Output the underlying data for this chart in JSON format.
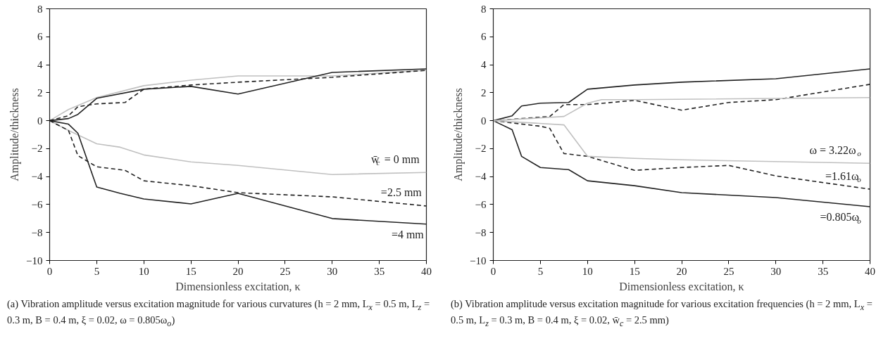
{
  "chart_data": [
    {
      "type": "line",
      "xlabel": "Dimensionless excitation, κ",
      "ylabel": "Amplitude/thickness",
      "xlim": [
        0,
        40
      ],
      "xticks": [
        0,
        5,
        10,
        15,
        20,
        25,
        30,
        35,
        40
      ],
      "ylim": [
        -10,
        8
      ],
      "yticks": [
        -10,
        -8,
        -6,
        -4,
        -2,
        0,
        2,
        4,
        6,
        8
      ],
      "grid": false,
      "legend": false,
      "marker": "none",
      "series": [
        {
          "color": "#c0c0c0",
          "line_style": "solid",
          "x": [
            0,
            1,
            2,
            5,
            10,
            15,
            20,
            30,
            40
          ],
          "values": [
            0,
            0.4,
            0.8,
            1.65,
            2.5,
            2.9,
            3.2,
            3.2,
            3.6
          ]
        },
        {
          "name": "w̄$_{c}$ = 0 mm",
          "color": "#c0c0c0",
          "line_style": "solid",
          "x": [
            0,
            2,
            5,
            7.5,
            10,
            15,
            20,
            30,
            40
          ],
          "values": [
            0,
            -0.7,
            -1.65,
            -1.9,
            -2.45,
            -2.95,
            -3.2,
            -3.85,
            -3.7
          ]
        },
        {
          "color": "#222222",
          "line_style": "dashed",
          "x": [
            0,
            2,
            3,
            5,
            8,
            10,
            15,
            20,
            30,
            40
          ],
          "values": [
            0,
            0.35,
            1.0,
            1.2,
            1.3,
            2.25,
            2.55,
            2.75,
            3.1,
            3.6
          ]
        },
        {
          "name": "=2.5 mm",
          "color": "#222222",
          "line_style": "dashed",
          "x": [
            0,
            2,
            3,
            5,
            8,
            10,
            15,
            20,
            30,
            40
          ],
          "values": [
            0,
            -0.7,
            -2.5,
            -3.3,
            -3.55,
            -4.3,
            -4.65,
            -5.15,
            -5.45,
            -6.1
          ]
        },
        {
          "color": "#222222",
          "line_style": "solid",
          "x": [
            0,
            2,
            3,
            5,
            10,
            15,
            20,
            30,
            40
          ],
          "values": [
            0,
            0.15,
            0.45,
            1.6,
            2.25,
            2.45,
            1.9,
            3.45,
            3.7
          ]
        },
        {
          "name": "=4 mm",
          "color": "#222222",
          "line_style": "solid",
          "x": [
            0,
            2,
            3,
            5,
            7.5,
            10,
            15,
            20,
            30,
            40
          ],
          "values": [
            0,
            -0.25,
            -0.9,
            -4.75,
            -5.2,
            -5.6,
            -5.95,
            -5.2,
            -7.0,
            -7.4
          ]
        }
      ],
      "annotations": [
        "(a) Vibration amplitude versus excitation magnitude for various curvatures (h = 2 mm, L$_{x}$ = 0.5 m, L$_{z}$ = 0.3 m, B = 0.4 m, ξ = 0.02, ω = 0.805ω$_{o}$)"
      ]
    },
    {
      "type": "line",
      "xlabel": "Dimensionless excitation, κ",
      "ylabel": "Amplitude/thickness",
      "xlim": [
        0,
        40
      ],
      "xticks": [
        0,
        5,
        10,
        15,
        20,
        25,
        30,
        35,
        40
      ],
      "ylim": [
        -10,
        8
      ],
      "yticks": [
        -10,
        -8,
        -6,
        -4,
        -2,
        0,
        2,
        4,
        6,
        8
      ],
      "grid": false,
      "legend": false,
      "marker": "none",
      "series": [
        {
          "color": "#222222",
          "line_style": "solid",
          "x": [
            0,
            2,
            3,
            5,
            8,
            10,
            15,
            20,
            30,
            40
          ],
          "values": [
            0,
            0.35,
            1.05,
            1.25,
            1.3,
            2.25,
            2.55,
            2.75,
            3.0,
            3.7
          ]
        },
        {
          "name": "=0.805ω$_{o}$",
          "color": "#222222",
          "line_style": "solid",
          "x": [
            0,
            2,
            3,
            5,
            8,
            10,
            15,
            20,
            30,
            40
          ],
          "values": [
            0,
            -0.65,
            -2.55,
            -3.35,
            -3.5,
            -4.3,
            -4.65,
            -5.15,
            -5.5,
            -6.15
          ]
        },
        {
          "color": "#222222",
          "line_style": "dashed",
          "x": [
            0,
            6,
            7.5,
            10,
            15,
            20,
            25,
            30,
            40
          ],
          "values": [
            0,
            0.3,
            1.15,
            1.15,
            1.45,
            0.75,
            1.3,
            1.5,
            2.6
          ]
        },
        {
          "name": "=1.61ω$_{o}$",
          "color": "#222222",
          "line_style": "dashed",
          "x": [
            0,
            5,
            6,
            7.5,
            10,
            15,
            20,
            25,
            30,
            40
          ],
          "values": [
            0,
            -0.4,
            -0.55,
            -2.35,
            -2.55,
            -3.55,
            -3.35,
            -3.2,
            -3.95,
            -4.9
          ]
        },
        {
          "color": "#c0c0c0",
          "line_style": "solid",
          "x": [
            0,
            7.5,
            10,
            11.5,
            15,
            40
          ],
          "values": [
            0,
            0.3,
            1.25,
            1.5,
            1.5,
            1.65
          ]
        },
        {
          "name": "ω = 3.22ω$_{o}$",
          "color": "#c0c0c0",
          "line_style": "solid",
          "x": [
            0,
            7.5,
            10,
            15,
            20,
            40
          ],
          "values": [
            0,
            -0.3,
            -2.55,
            -2.7,
            -2.8,
            -3.05
          ]
        }
      ],
      "annotations": [
        "(b) Vibration amplitude versus excitation magnitude for various excitation frequencies (h = 2 mm, L$_{x}$ = 0.5 m, L$_{z}$ = 0.3 m, B = 0.4 m, ξ = 0.02, w̄$_{c}$ = 2.5 mm)"
      ]
    }
  ]
}
